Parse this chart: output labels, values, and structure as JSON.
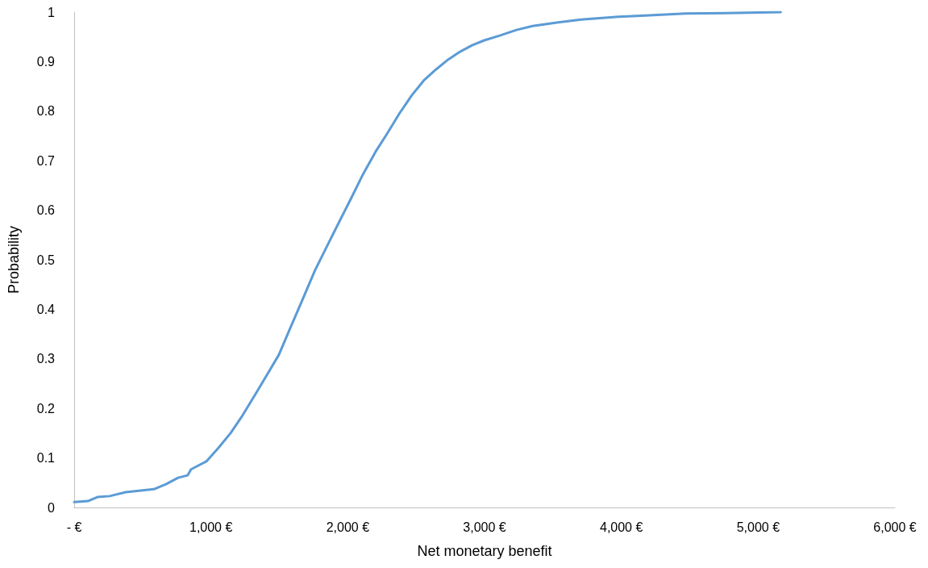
{
  "chart_data": {
    "type": "line",
    "xlabel": "Net monetary benefit",
    "ylabel": "Probability",
    "grid": false,
    "marker": "none",
    "line_style": "solid",
    "series": [
      {
        "color": "#5b9bd5",
        "x": [
          0,
          100,
          170,
          260,
          377,
          583,
          671,
          760,
          830,
          854,
          966,
          1054,
          1143,
          1231,
          1319,
          1408,
          1496,
          1584,
          1673,
          1761,
          1849,
          1938,
          2026,
          2114,
          2203,
          2291,
          2379,
          2468,
          2556,
          2644,
          2733,
          2821,
          2909,
          2998,
          3115,
          3233,
          3351,
          3527,
          3704,
          3940,
          4175,
          4470,
          4764,
          5165
        ],
        "values": [
          0.011,
          0.013,
          0.021,
          0.023,
          0.031,
          0.037,
          0.047,
          0.06,
          0.065,
          0.077,
          0.093,
          0.12,
          0.15,
          0.186,
          0.226,
          0.267,
          0.308,
          0.365,
          0.422,
          0.479,
          0.528,
          0.577,
          0.625,
          0.674,
          0.718,
          0.756,
          0.796,
          0.832,
          0.862,
          0.884,
          0.904,
          0.92,
          0.933,
          0.943,
          0.953,
          0.964,
          0.972,
          0.979,
          0.985,
          0.99,
          0.993,
          0.997,
          0.998,
          1.0
        ]
      }
    ],
    "xlim": [
      0,
      6000
    ],
    "xticks": [
      {
        "value": 0,
        "label": "- €"
      },
      {
        "value": 1000,
        "label": "1,000 €"
      },
      {
        "value": 2000,
        "label": "2,000 €"
      },
      {
        "value": 3000,
        "label": "3,000 €"
      },
      {
        "value": 4000,
        "label": "4,000 €"
      },
      {
        "value": 5000,
        "label": "5,000 €"
      },
      {
        "value": 6000,
        "label": "6,000 €"
      }
    ],
    "ylim": [
      0,
      1
    ],
    "yticks": [
      0,
      0.1,
      0.2,
      0.3,
      0.4,
      0.5,
      0.6,
      0.7,
      0.8,
      0.9,
      1
    ]
  }
}
